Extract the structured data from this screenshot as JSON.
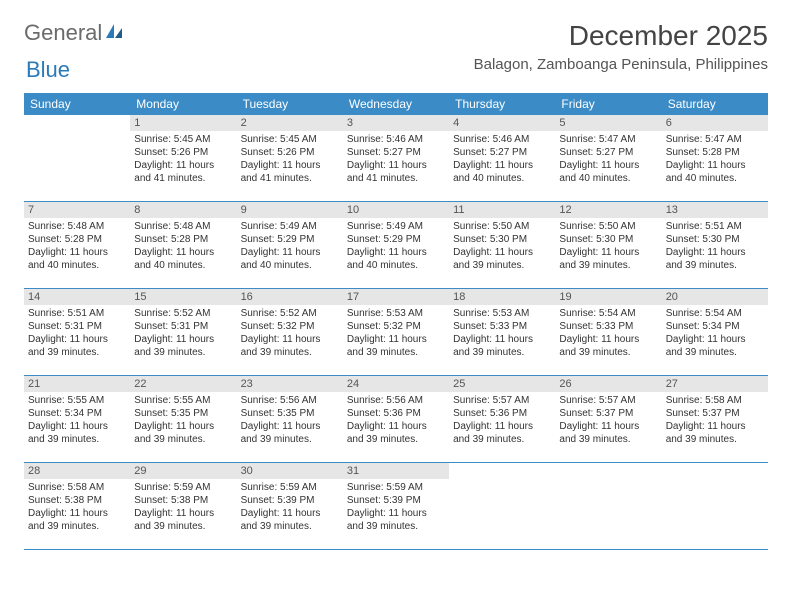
{
  "logo": {
    "text1": "General",
    "text2": "Blue"
  },
  "title": "December 2025",
  "location": "Balagon, Zamboanga Peninsula, Philippines",
  "colors": {
    "header_bar": "#3b8bc6",
    "daynum_bg": "#e6e6e6",
    "text": "#333333",
    "logo_gray": "#6b6b6b",
    "logo_blue": "#2a7ab9"
  },
  "weekdays": [
    "Sunday",
    "Monday",
    "Tuesday",
    "Wednesday",
    "Thursday",
    "Friday",
    "Saturday"
  ],
  "weeks": [
    [
      {
        "empty": true
      },
      {
        "n": "1",
        "sr": "5:45 AM",
        "ss": "5:26 PM",
        "dl": "11 hours and 41 minutes."
      },
      {
        "n": "2",
        "sr": "5:45 AM",
        "ss": "5:26 PM",
        "dl": "11 hours and 41 minutes."
      },
      {
        "n": "3",
        "sr": "5:46 AM",
        "ss": "5:27 PM",
        "dl": "11 hours and 41 minutes."
      },
      {
        "n": "4",
        "sr": "5:46 AM",
        "ss": "5:27 PM",
        "dl": "11 hours and 40 minutes."
      },
      {
        "n": "5",
        "sr": "5:47 AM",
        "ss": "5:27 PM",
        "dl": "11 hours and 40 minutes."
      },
      {
        "n": "6",
        "sr": "5:47 AM",
        "ss": "5:28 PM",
        "dl": "11 hours and 40 minutes."
      }
    ],
    [
      {
        "n": "7",
        "sr": "5:48 AM",
        "ss": "5:28 PM",
        "dl": "11 hours and 40 minutes."
      },
      {
        "n": "8",
        "sr": "5:48 AM",
        "ss": "5:28 PM",
        "dl": "11 hours and 40 minutes."
      },
      {
        "n": "9",
        "sr": "5:49 AM",
        "ss": "5:29 PM",
        "dl": "11 hours and 40 minutes."
      },
      {
        "n": "10",
        "sr": "5:49 AM",
        "ss": "5:29 PM",
        "dl": "11 hours and 40 minutes."
      },
      {
        "n": "11",
        "sr": "5:50 AM",
        "ss": "5:30 PM",
        "dl": "11 hours and 39 minutes."
      },
      {
        "n": "12",
        "sr": "5:50 AM",
        "ss": "5:30 PM",
        "dl": "11 hours and 39 minutes."
      },
      {
        "n": "13",
        "sr": "5:51 AM",
        "ss": "5:30 PM",
        "dl": "11 hours and 39 minutes."
      }
    ],
    [
      {
        "n": "14",
        "sr": "5:51 AM",
        "ss": "5:31 PM",
        "dl": "11 hours and 39 minutes."
      },
      {
        "n": "15",
        "sr": "5:52 AM",
        "ss": "5:31 PM",
        "dl": "11 hours and 39 minutes."
      },
      {
        "n": "16",
        "sr": "5:52 AM",
        "ss": "5:32 PM",
        "dl": "11 hours and 39 minutes."
      },
      {
        "n": "17",
        "sr": "5:53 AM",
        "ss": "5:32 PM",
        "dl": "11 hours and 39 minutes."
      },
      {
        "n": "18",
        "sr": "5:53 AM",
        "ss": "5:33 PM",
        "dl": "11 hours and 39 minutes."
      },
      {
        "n": "19",
        "sr": "5:54 AM",
        "ss": "5:33 PM",
        "dl": "11 hours and 39 minutes."
      },
      {
        "n": "20",
        "sr": "5:54 AM",
        "ss": "5:34 PM",
        "dl": "11 hours and 39 minutes."
      }
    ],
    [
      {
        "n": "21",
        "sr": "5:55 AM",
        "ss": "5:34 PM",
        "dl": "11 hours and 39 minutes."
      },
      {
        "n": "22",
        "sr": "5:55 AM",
        "ss": "5:35 PM",
        "dl": "11 hours and 39 minutes."
      },
      {
        "n": "23",
        "sr": "5:56 AM",
        "ss": "5:35 PM",
        "dl": "11 hours and 39 minutes."
      },
      {
        "n": "24",
        "sr": "5:56 AM",
        "ss": "5:36 PM",
        "dl": "11 hours and 39 minutes."
      },
      {
        "n": "25",
        "sr": "5:57 AM",
        "ss": "5:36 PM",
        "dl": "11 hours and 39 minutes."
      },
      {
        "n": "26",
        "sr": "5:57 AM",
        "ss": "5:37 PM",
        "dl": "11 hours and 39 minutes."
      },
      {
        "n": "27",
        "sr": "5:58 AM",
        "ss": "5:37 PM",
        "dl": "11 hours and 39 minutes."
      }
    ],
    [
      {
        "n": "28",
        "sr": "5:58 AM",
        "ss": "5:38 PM",
        "dl": "11 hours and 39 minutes."
      },
      {
        "n": "29",
        "sr": "5:59 AM",
        "ss": "5:38 PM",
        "dl": "11 hours and 39 minutes."
      },
      {
        "n": "30",
        "sr": "5:59 AM",
        "ss": "5:39 PM",
        "dl": "11 hours and 39 minutes."
      },
      {
        "n": "31",
        "sr": "5:59 AM",
        "ss": "5:39 PM",
        "dl": "11 hours and 39 minutes."
      },
      {
        "empty": true
      },
      {
        "empty": true
      },
      {
        "empty": true
      }
    ]
  ],
  "labels": {
    "sunrise": "Sunrise: ",
    "sunset": "Sunset: ",
    "daylight": "Daylight: "
  }
}
